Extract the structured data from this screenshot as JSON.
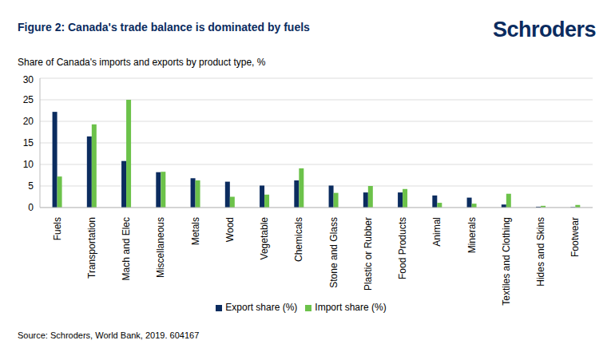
{
  "chart_data": {
    "type": "bar",
    "title": "Figure 2: Canada's trade balance is dominated by fuels",
    "logo": "Schroders",
    "subtitle": "Share of Canada's imports and exports by product type, %",
    "source": "Source: Schroders, World Bank, 2019. 604167",
    "categories": [
      "Fuels",
      "Transportation",
      "Mach and Elec",
      "Miscellaneous",
      "Metals",
      "Wood",
      "Vegetable",
      "Chemicals",
      "Stone and Glass",
      "Plastic or Rubber",
      "Food Products",
      "Animal",
      "Minerals",
      "Textiles and Clothing",
      "Hides and Skins",
      "Footwear"
    ],
    "series": [
      {
        "name": "Export share (%)",
        "color": "#0b2c5f",
        "values": [
          22.2,
          16.5,
          10.8,
          8.2,
          6.8,
          6.0,
          5.1,
          6.3,
          5.1,
          3.5,
          3.5,
          2.8,
          2.3,
          0.7,
          0.2,
          0.1
        ]
      },
      {
        "name": "Import share (%)",
        "color": "#6cc24a",
        "values": [
          7.2,
          19.3,
          25.0,
          8.3,
          6.3,
          2.5,
          3.0,
          9.1,
          3.4,
          5.0,
          4.3,
          1.1,
          0.9,
          3.2,
          0.4,
          0.6
        ]
      }
    ],
    "ylim": [
      0,
      30
    ],
    "yticks": [
      0,
      5,
      10,
      15,
      20,
      25,
      30
    ],
    "grid": true,
    "legend": "bottom"
  }
}
